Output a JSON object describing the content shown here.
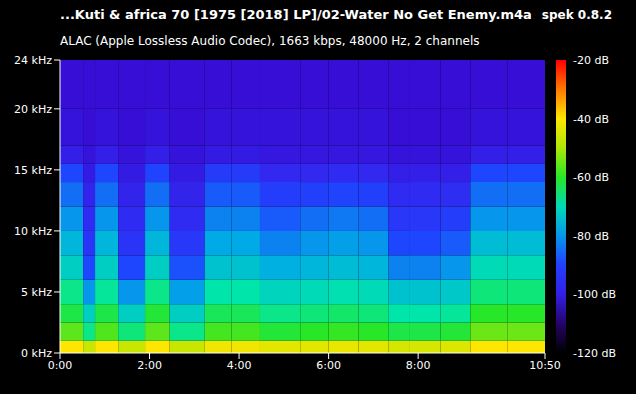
{
  "chart_data": {
    "type": "heatmap",
    "title": "...Kuti & africa 70 [1975 [2018] LP]/02-Water No Get Enemy.m4a",
    "subtitle": "ALAC (Apple Lossless Audio Codec), 1663 kbps, 48000 Hz, 2 channels",
    "annotations": [
      "spek 0.8.2"
    ],
    "x_bins": [
      0,
      31,
      47,
      78,
      114,
      147,
      194,
      230,
      268,
      322,
      360,
      400,
      440,
      469,
      510,
      550,
      600,
      650
    ],
    "y_bins": [
      0,
      1,
      2.5,
      4,
      6,
      8,
      10,
      12,
      14,
      15.5,
      17,
      20,
      24
    ],
    "values": [
      [
        -40,
        -56,
        -62,
        -66,
        -72,
        -76,
        -80,
        -84,
        -88,
        -100,
        -103,
        -104
      ],
      [
        -48,
        -66,
        -72,
        -80,
        -88,
        -94,
        -97,
        -99,
        -101,
        -103,
        -104,
        -104
      ],
      [
        -40,
        -57,
        -62,
        -67,
        -72,
        -76,
        -80,
        -84,
        -88,
        -100,
        -103,
        -104
      ],
      [
        -48,
        -65,
        -72,
        -80,
        -88,
        -94,
        -97,
        -99,
        -101,
        -103,
        -104,
        -104
      ],
      [
        -40,
        -56,
        -61,
        -66,
        -72,
        -76,
        -80,
        -84,
        -89,
        -100,
        -103,
        -104
      ],
      [
        -48,
        -66,
        -72,
        -79,
        -87,
        -93,
        -97,
        -99,
        -101,
        -103,
        -104,
        -104
      ],
      [
        -42,
        -58,
        -63,
        -68,
        -74,
        -78,
        -82,
        -86,
        -92,
        -101,
        -103,
        -104
      ],
      [
        -42,
        -58,
        -63,
        -68,
        -74,
        -78,
        -82,
        -86,
        -92,
        -101,
        -103,
        -104
      ],
      [
        -44,
        -61,
        -66,
        -71,
        -77,
        -82,
        -86,
        -91,
        -98,
        -102,
        -103,
        -104
      ],
      [
        -44,
        -60,
        -65,
        -70,
        -76,
        -80,
        -84,
        -90,
        -98,
        -102,
        -103,
        -104
      ],
      [
        -43,
        -59,
        -64,
        -69,
        -75,
        -79,
        -83,
        -89,
        -97,
        -102,
        -103,
        -104
      ],
      [
        -44,
        -60,
        -65,
        -70,
        -76,
        -80,
        -84,
        -90,
        -98,
        -102,
        -103,
        -104
      ],
      [
        -46,
        -62,
        -68,
        -74,
        -82,
        -88,
        -93,
        -97,
        -100,
        -103,
        -104,
        -104
      ],
      [
        -46,
        -62,
        -68,
        -74,
        -82,
        -88,
        -93,
        -97,
        -100,
        -103,
        -104,
        -104
      ],
      [
        -45,
        -61,
        -67,
        -73,
        -80,
        -86,
        -91,
        -96,
        -100,
        -103,
        -104,
        -104
      ],
      [
        -40,
        -55,
        -60,
        -65,
        -70,
        -75,
        -80,
        -84,
        -88,
        -100,
        -103,
        -104
      ],
      [
        -40,
        -55,
        -60,
        -65,
        -70,
        -75,
        -80,
        -84,
        -88,
        -100,
        -103,
        -104
      ]
    ],
    "xlim": [
      0,
      650
    ],
    "xticks": [
      {
        "value": 0,
        "label": "0:00"
      },
      {
        "value": 120,
        "label": "2:00"
      },
      {
        "value": 240,
        "label": "4:00"
      },
      {
        "value": 360,
        "label": "6:00"
      },
      {
        "value": 480,
        "label": "8:00"
      },
      {
        "value": 650,
        "label": "10:50"
      }
    ],
    "ylim": [
      0,
      24
    ],
    "yticks": [
      {
        "value": 0,
        "label": "0 kHz"
      },
      {
        "value": 5,
        "label": "5 kHz"
      },
      {
        "value": 10,
        "label": "10 kHz"
      },
      {
        "value": 15,
        "label": "15 kHz"
      },
      {
        "value": 20,
        "label": "20 kHz"
      },
      {
        "value": 24,
        "label": "24 kHz"
      }
    ],
    "colorbar_range": [
      -120,
      -20
    ],
    "colorbar_ticks": [
      {
        "value": -20,
        "label": "-20 dB"
      },
      {
        "value": -40,
        "label": "-40 dB"
      },
      {
        "value": -60,
        "label": "-60 dB"
      },
      {
        "value": -80,
        "label": "-80 dB"
      },
      {
        "value": -100,
        "label": "-100 dB"
      },
      {
        "value": -120,
        "label": "-120 dB"
      }
    ]
  }
}
